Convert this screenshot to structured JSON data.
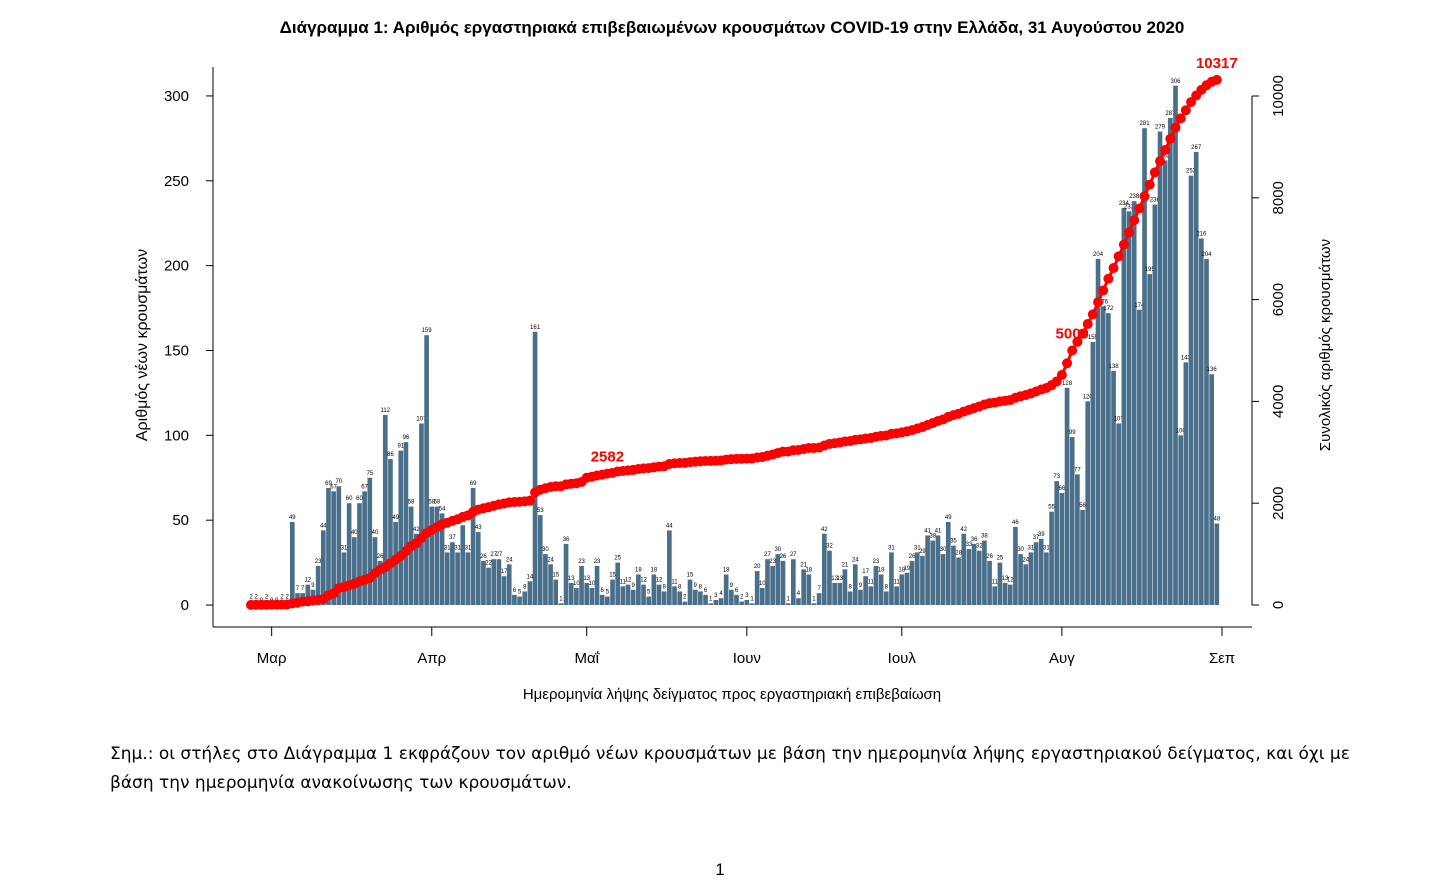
{
  "chart_data": {
    "type": "bar",
    "title": "Διάγραμμα 1: Αριθμός εργαστηριακά επιβεβαιωμένων κρουσμάτων COVID-19 στην Ελλάδα, 31 Αυγούστου 2020",
    "x_label": "Ημερομηνία λήψης δείγματος προς εργαστηριακή επιβεβαίωση",
    "y_label": "Αριθμός νέων κρουσμάτων",
    "y2_label": "Συνολικός αριθμός κρουσμάτων",
    "categories": [
      null,
      null,
      null,
      null,
      "Μαρ",
      null,
      null,
      null,
      null,
      null,
      null,
      null,
      null,
      null,
      null,
      null,
      null,
      null,
      null,
      null,
      null,
      null,
      null,
      null,
      null,
      null,
      null,
      null,
      null,
      null,
      null,
      null,
      null,
      null,
      null,
      "Απρ",
      null,
      null,
      null,
      null,
      null,
      null,
      null,
      null,
      null,
      null,
      null,
      null,
      null,
      null,
      null,
      null,
      null,
      null,
      null,
      null,
      null,
      null,
      null,
      null,
      null,
      null,
      null,
      null,
      null,
      "Μαΐ",
      null,
      null,
      null,
      null,
      null,
      null,
      null,
      null,
      null,
      null,
      null,
      null,
      null,
      null,
      null,
      null,
      null,
      null,
      null,
      null,
      null,
      null,
      null,
      null,
      null,
      null,
      null,
      null,
      null,
      null,
      "Ιουν",
      null,
      null,
      null,
      null,
      null,
      null,
      null,
      null,
      null,
      null,
      null,
      null,
      null,
      null,
      null,
      null,
      null,
      null,
      null,
      null,
      null,
      null,
      null,
      null,
      null,
      null,
      null,
      null,
      null,
      "Ιουλ",
      null,
      null,
      null,
      null,
      null,
      null,
      null,
      null,
      null,
      null,
      null,
      null,
      null,
      null,
      null,
      null,
      null,
      null,
      null,
      null,
      null,
      null,
      null,
      null,
      null,
      null,
      null,
      null,
      null,
      null,
      "Αυγ",
      null,
      null,
      null,
      null,
      null,
      null,
      null,
      null,
      null,
      null,
      null,
      null,
      null,
      null,
      null,
      null,
      null,
      null,
      null,
      null,
      null,
      null,
      null,
      null,
      null,
      null,
      null,
      null,
      null,
      null,
      "Σεπ"
    ],
    "series": [
      {
        "type": "bar",
        "color": "#4a6f8a",
        "values": [
          2,
          2,
          0,
          2,
          0,
          0,
          2,
          2,
          49,
          7,
          7,
          12,
          9,
          23,
          44,
          69,
          67,
          70,
          31,
          60,
          40,
          60,
          67,
          75,
          40,
          26,
          112,
          86,
          49,
          91,
          96,
          58,
          42,
          107,
          159,
          58,
          58,
          54,
          31,
          37,
          31,
          47,
          31,
          69,
          43,
          26,
          22,
          27,
          27,
          17,
          24,
          6,
          5,
          8,
          14,
          161,
          53,
          30,
          24,
          15,
          1,
          36,
          13,
          10,
          23,
          13,
          10,
          23,
          6,
          5,
          15,
          25,
          11,
          12,
          9,
          18,
          12,
          5,
          18,
          12,
          8,
          44,
          11,
          8,
          2,
          15,
          9,
          8,
          6,
          1,
          3,
          4,
          18,
          9,
          6,
          2,
          3,
          1,
          20,
          10,
          27,
          23,
          30,
          26,
          1,
          27,
          4,
          21,
          18,
          1,
          7,
          42,
          32,
          13,
          13,
          21,
          8,
          24,
          9,
          17,
          11,
          23,
          18,
          8,
          31,
          11,
          18,
          19,
          26,
          31,
          29,
          41,
          38,
          41,
          30,
          49,
          35,
          28,
          42,
          33,
          36,
          32,
          38,
          26,
          11,
          25,
          13,
          12,
          46,
          30,
          24,
          31,
          37,
          39,
          31,
          55,
          73,
          66,
          128,
          99,
          77,
          56,
          120,
          155,
          204,
          176,
          172,
          138,
          107,
          234,
          232,
          238,
          174,
          281,
          195,
          236,
          279,
          262,
          287,
          306,
          100,
          143,
          253,
          267,
          216,
          204,
          136,
          48,
          null
        ]
      },
      {
        "type": "line",
        "axis": "y2",
        "color": "#ff0000",
        "values": [
          2,
          4,
          4,
          6,
          7,
          7,
          9,
          10,
          31,
          45,
          66,
          73,
          89,
          99,
          117,
          190,
          228,
          331,
          352,
          387,
          418,
          464,
          495,
          530,
          624,
          695,
          743,
          821,
          892,
          966,
          1061,
          1156,
          1212,
          1314,
          1415,
          1473,
          1531,
          1585,
          1616,
          1653,
          1684,
          1731,
          1762,
          1831,
          1874,
          1900,
          1922,
          1949,
          1976,
          1993,
          2017,
          2023,
          2028,
          2036,
          2050,
          2211,
          2264,
          2294,
          2318,
          2333,
          2334,
          2370,
          2383,
          2393,
          2416,
          2500,
          2520,
          2545,
          2560,
          2582,
          2597,
          2622,
          2633,
          2645,
          2654,
          2672,
          2684,
          2689,
          2707,
          2719,
          2727,
          2771,
          2782,
          2790,
          2792,
          2807,
          2816,
          2824,
          2830,
          2831,
          2834,
          2838,
          2856,
          2865,
          2871,
          2873,
          2876,
          2877,
          2897,
          2907,
          2934,
          2957,
          2987,
          3013,
          3014,
          3041,
          3045,
          3066,
          3084,
          3085,
          3092,
          3134,
          3166,
          3179,
          3192,
          3213,
          3221,
          3245,
          3254,
          3271,
          3282,
          3305,
          3323,
          3331,
          3362,
          3373,
          3391,
          3410,
          3436,
          3467,
          3496,
          3537,
          3575,
          3616,
          3646,
          3695,
          3730,
          3758,
          3800,
          3833,
          3869,
          3901,
          3939,
          3965,
          3976,
          4001,
          4014,
          4026,
          4072,
          4102,
          4126,
          4157,
          4194,
          4233,
          4264,
          4319,
          4392,
          4520,
          4750,
          5000,
          5170,
          5330,
          5520,
          5710,
          5950,
          6180,
          6410,
          6620,
          6850,
          7080,
          7320,
          7560,
          7790,
          8030,
          8260,
          8500,
          8720,
          8940,
          9160,
          9380,
          9560,
          9720,
          9880,
          10010,
          10120,
          10210,
          10280,
          10317,
          null
        ],
        "annotate": [
          69,
          159,
          187
        ]
      }
    ],
    "ylim": [
      -10,
      320
    ],
    "yticks": [
      0,
      50,
      100,
      150,
      200,
      250,
      300
    ],
    "y2lim": [
      -334,
      10668
    ],
    "y2ticks": [
      0,
      2000,
      4000,
      6000,
      8000,
      10000
    ]
  },
  "note": "Σημ.: οι στήλες στο Διάγραμμα 1 εκφράζουν τον αριθμό νέων κρουσμάτων με βάση την ημερομηνία λήψης εργαστηριακού δείγματος, και όχι με βάση την ημερομηνία ανακοίνωσης των κρουσμάτων.",
  "page_number": "1"
}
